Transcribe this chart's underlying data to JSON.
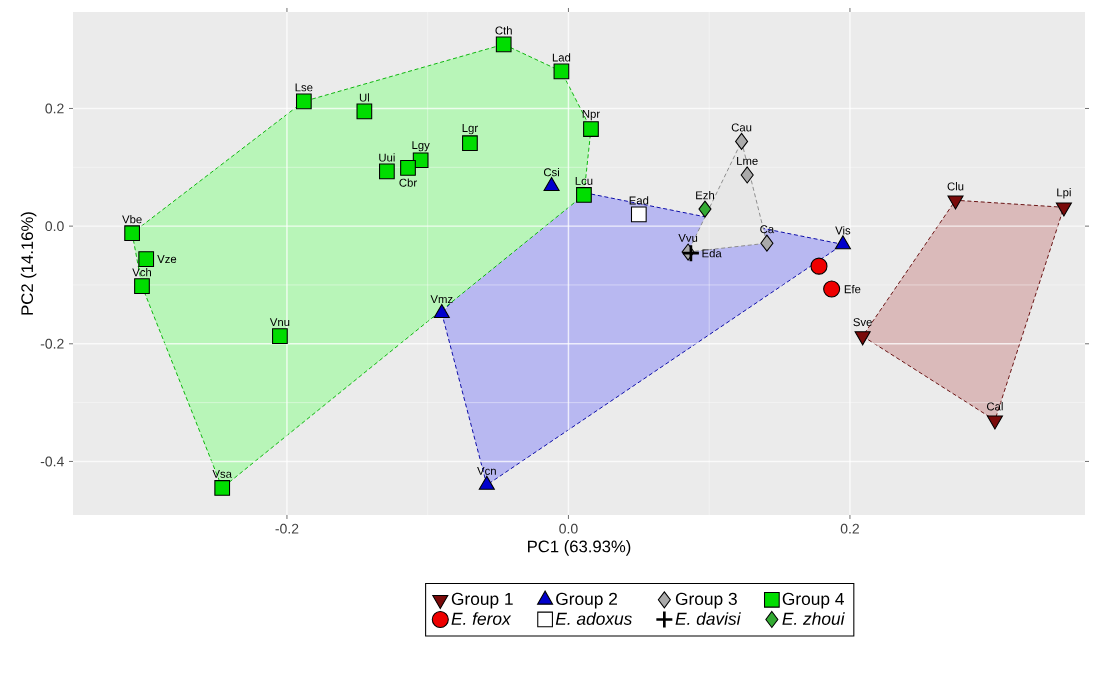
{
  "chart_data": {
    "type": "scatter",
    "xlabel": "PC1 (63.93%)",
    "ylabel": "PC2 (14.16%)",
    "xlim": [
      -0.352,
      0.367
    ],
    "ylim": [
      -0.491,
      0.364
    ],
    "xticks": [
      {
        "value": -0.2,
        "label": "-0.2"
      },
      {
        "value": 0,
        "label": "0.0"
      },
      {
        "value": 0.2,
        "label": "0.2"
      }
    ],
    "yticks": [
      {
        "value": -0.4,
        "label": "-0.4"
      },
      {
        "value": -0.2,
        "label": "-0.2"
      },
      {
        "value": 0,
        "label": "0.0"
      },
      {
        "value": 0.2,
        "label": "0.2"
      }
    ],
    "grid": true,
    "legend": "bottom",
    "series": [
      {
        "name": "Group 1",
        "color": "#7a0a0a",
        "marker": "triangle-down",
        "x": [
          0.275,
          0.352,
          0.209,
          0.303
        ],
        "values": [
          0.044,
          0.032,
          -0.187,
          -0.33
        ]
      },
      {
        "name": "Group 2",
        "color": "#0000cc",
        "marker": "triangle",
        "x": [
          -0.012,
          0.195,
          -0.09,
          -0.058
        ],
        "values": [
          0.068,
          -0.031,
          -0.148,
          -0.44
        ]
      },
      {
        "name": "Group 3",
        "color": "#aaaaaa",
        "marker": "diamond",
        "x": [
          0.123,
          0.127,
          0.141,
          0.085
        ],
        "values": [
          0.144,
          0.087,
          -0.029,
          -0.044
        ]
      },
      {
        "name": "Group 4",
        "color": "#00dd00",
        "marker": "square",
        "x": [
          -0.046,
          -0.005,
          -0.188,
          -0.145,
          -0.07,
          0.016,
          -0.105,
          -0.114,
          -0.129,
          0.011,
          -0.31,
          -0.3,
          -0.303,
          -0.205,
          -0.246
        ],
        "values": [
          0.309,
          0.263,
          0.212,
          0.195,
          0.141,
          0.165,
          0.112,
          0.099,
          0.093,
          0.053,
          -0.012,
          -0.056,
          -0.102,
          -0.187,
          -0.445
        ]
      },
      {
        "name": "E. ferox",
        "color": "#ee0000",
        "marker": "circle",
        "x": [
          0.178,
          0.187
        ],
        "values": [
          -0.068,
          -0.107
        ]
      },
      {
        "name": "E. adoxus",
        "color": "#ffffff",
        "marker": "square",
        "x": [
          0.05
        ],
        "values": [
          0.02
        ]
      },
      {
        "name": "E. davisi",
        "color": "#000000",
        "marker": "cross",
        "x": [
          0.087
        ],
        "values": [
          -0.046
        ]
      },
      {
        "name": "E. zhoui",
        "color": "#33aa33",
        "marker": "diamond",
        "x": [
          0.097
        ],
        "values": [
          0.029
        ]
      }
    ],
    "annotations": [
      {
        "text": "Clu",
        "x": 0.275,
        "y": 0.044
      },
      {
        "text": "Lpi",
        "x": 0.352,
        "y": 0.032
      },
      {
        "text": "Sve",
        "x": 0.209,
        "y": -0.187
      },
      {
        "text": "Cal",
        "x": 0.303,
        "y": -0.33
      },
      {
        "text": "Csi",
        "x": -0.012,
        "y": 0.068
      },
      {
        "text": "Vis",
        "x": 0.195,
        "y": -0.031
      },
      {
        "text": "Vmz",
        "x": -0.09,
        "y": -0.148
      },
      {
        "text": "Vcn",
        "x": -0.058,
        "y": -0.44
      },
      {
        "text": "Cau",
        "x": 0.123,
        "y": 0.144
      },
      {
        "text": "Lme",
        "x": 0.127,
        "y": 0.087
      },
      {
        "text": "Ca",
        "x": 0.141,
        "y": -0.029
      },
      {
        "text": "Vvu",
        "x": 0.085,
        "y": -0.044
      },
      {
        "text": "Cth",
        "x": -0.046,
        "y": 0.309
      },
      {
        "text": "Lad",
        "x": -0.005,
        "y": 0.263
      },
      {
        "text": "Lse",
        "x": -0.188,
        "y": 0.212
      },
      {
        "text": "Ul",
        "x": -0.145,
        "y": 0.195
      },
      {
        "text": "Lgr",
        "x": -0.07,
        "y": 0.141
      },
      {
        "text": "Npr",
        "x": 0.016,
        "y": 0.165
      },
      {
        "text": "Lgy",
        "x": -0.105,
        "y": 0.112
      },
      {
        "text": "Cbr",
        "x": -0.114,
        "y": 0.099
      },
      {
        "text": "Uui",
        "x": -0.129,
        "y": 0.093
      },
      {
        "text": "Lcu",
        "x": 0.011,
        "y": 0.053
      },
      {
        "text": "Vbe",
        "x": -0.31,
        "y": -0.012
      },
      {
        "text": "Vze",
        "x": -0.3,
        "y": -0.056
      },
      {
        "text": "Vch",
        "x": -0.303,
        "y": -0.102
      },
      {
        "text": "Vnu",
        "x": -0.205,
        "y": -0.187
      },
      {
        "text": "Vsa",
        "x": -0.246,
        "y": -0.445
      },
      {
        "text": "Efe",
        "x": 0.187,
        "y": -0.107
      },
      {
        "text": "Ead",
        "x": 0.05,
        "y": 0.02
      },
      {
        "text": "Eda",
        "x": 0.087,
        "y": -0.046
      },
      {
        "text": "Ezh",
        "x": 0.097,
        "y": 0.029
      }
    ]
  }
}
